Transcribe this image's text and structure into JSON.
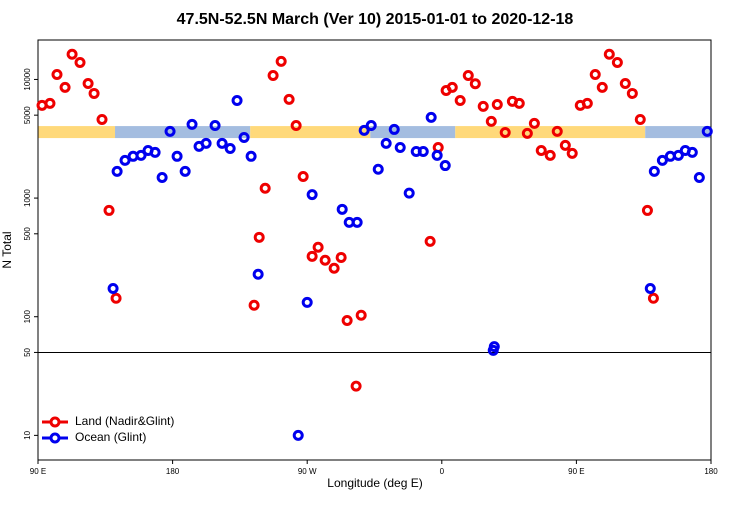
{
  "chart_data": {
    "type": "scatter",
    "title": "47.5N-52.5N March (Ver 10)   2015-01-01 to 2020-12-18",
    "x_label": "Longitude (deg E)",
    "y_label": "N Total",
    "log_y": true,
    "legend": "bottom-left",
    "xlim": [
      90,
      540
    ],
    "ylim": [
      6.2,
      21500
    ],
    "xticks": [
      {
        "value": 90,
        "label": "90 E"
      },
      {
        "value": 180,
        "label": "180"
      },
      {
        "value": 270,
        "label": "90 W"
      },
      {
        "value": 360,
        "label": "0"
      },
      {
        "value": 450,
        "label": "90 E"
      },
      {
        "value": 540,
        "label": "180"
      }
    ],
    "yticks": [
      10,
      50,
      100,
      500,
      1000,
      5000,
      10000
    ],
    "hline": 50,
    "band": {
      "y": 3600,
      "segments": [
        {
          "start": 90,
          "end": 141.5,
          "color": "#ffd97a"
        },
        {
          "start": 141.5,
          "end": 231.9,
          "color": "#a4bde0"
        },
        {
          "start": 231.9,
          "end": 312.2,
          "color": "#ffd97a"
        },
        {
          "start": 312.2,
          "end": 369,
          "color": "#a4bde0"
        },
        {
          "start": 369,
          "end": 496,
          "color": "#ffd97a"
        },
        {
          "start": 496,
          "end": 540,
          "color": "#a4bde0"
        }
      ]
    },
    "series": [
      {
        "name": "Land (Nadir&Glint)",
        "color": "#ee0000",
        "x": [
          92.7,
          98.0,
          102.7,
          108.1,
          112.8,
          118.1,
          123.5,
          127.5,
          132.8,
          137.5,
          142.2,
          234.5,
          237.9,
          241.9,
          247.2,
          252.6,
          257.9,
          262.6,
          267.3,
          273.3,
          277.3,
          282.0,
          288.0,
          292.7,
          296.7,
          302.7,
          306.1,
          352.2,
          357.6,
          362.9,
          367.0,
          372.3,
          377.7,
          382.4,
          387.7,
          393.1,
          397.1,
          402.4,
          407.2,
          411.8,
          417.2,
          421.9,
          426.5,
          432.5,
          437.2,
          442.6,
          447.2,
          452.6,
          457.3,
          462.6,
          467.3,
          472.0,
          477.4,
          482.7,
          487.4,
          492.7,
          497.5,
          501.5
        ],
        "values": [
          6040,
          6280,
          11000,
          8570,
          16300,
          13900,
          9250,
          7620,
          4600,
          787,
          143,
          125,
          467,
          1210,
          10800,
          14200,
          6790,
          4090,
          1520,
          323,
          385,
          299,
          256,
          316,
          93,
          26,
          103,
          432,
          2670,
          8070,
          8570,
          6650,
          10800,
          9200,
          5930,
          4430,
          6150,
          3570,
          6530,
          6280,
          3510,
          4260,
          2520,
          2290,
          3650,
          2780,
          2380,
          6040,
          6280,
          11000,
          8570,
          16300,
          13900,
          9250,
          7620,
          4600,
          787,
          143
        ]
      },
      {
        "name": "Ocean (Glint)",
        "color": "#0000ee",
        "x": [
          140.2,
          142.9,
          148.2,
          153.6,
          158.9,
          163.6,
          168.3,
          173.0,
          178.3,
          183.0,
          188.4,
          193.0,
          197.7,
          202.4,
          208.4,
          213.1,
          218.5,
          223.1,
          227.8,
          232.5,
          237.2,
          264.0,
          270.0,
          273.3,
          293.4,
          298.1,
          303.4,
          308.1,
          312.8,
          317.5,
          322.8,
          328.2,
          332.2,
          338.2,
          342.9,
          347.6,
          352.9,
          356.9,
          362.3,
          394.4,
          395.1,
          499.4,
          502.1,
          507.5,
          512.8,
          518.2,
          522.8,
          527.5,
          532.2,
          537.5
        ],
        "values": [
          173,
          1680,
          2080,
          2250,
          2290,
          2520,
          2430,
          1490,
          3650,
          2250,
          1680,
          4180,
          2730,
          2890,
          4090,
          2890,
          2620,
          6650,
          3240,
          2250,
          228,
          10,
          132,
          1070,
          804,
          624,
          624,
          3720,
          4090,
          1750,
          2890,
          3790,
          2670,
          1100,
          2470,
          2470,
          4790,
          2290,
          1880,
          52,
          56,
          173,
          1680,
          2080,
          2250,
          2290,
          2520,
          2430,
          1490,
          3650
        ]
      }
    ]
  }
}
